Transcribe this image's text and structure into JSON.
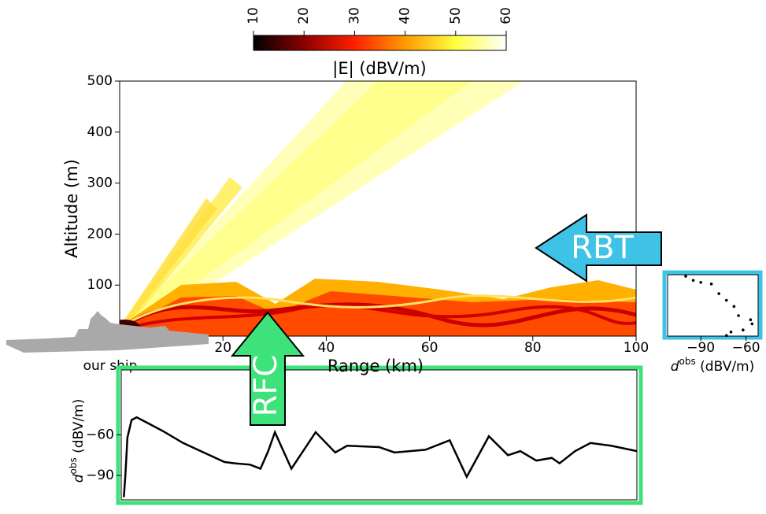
{
  "chart_data": [
    {
      "type": "heatmap",
      "xlabel": "Range (km)",
      "ylabel": "Altitude (m)",
      "xlim": [
        0,
        100
      ],
      "ylim": [
        0,
        500
      ],
      "xticks": [
        20,
        40,
        60,
        80,
        100
      ],
      "yticks": [
        100,
        200,
        300,
        400,
        500
      ],
      "colorbar": {
        "label": "|E| (dBV/m)",
        "lim": [
          10,
          60
        ],
        "ticks": [
          10,
          20,
          30,
          40,
          50,
          60
        ],
        "colors": [
          "#000000",
          "#8b0000",
          "#ff2000",
          "#ff9a00",
          "#ffff40",
          "#ffffff"
        ]
      },
      "annotation": "our ship"
    },
    {
      "type": "line",
      "annotation": "RFC",
      "color": "#000000",
      "x": [
        0.5,
        0.8,
        1.2,
        2,
        3,
        5,
        8,
        12,
        16,
        20,
        22,
        25,
        27,
        28.5,
        29.8,
        33,
        37.7,
        41.5,
        43.8,
        50,
        53,
        59,
        63.7,
        67,
        71.3,
        75,
        77.4,
        80.5,
        83.5,
        85,
        88,
        91,
        95,
        100
      ],
      "values": [
        -106,
        -90,
        -62,
        -49,
        -47,
        -51,
        -57,
        -66,
        -73,
        -80,
        -81,
        -82,
        -85,
        -72,
        -58,
        -85,
        -58,
        -73,
        -68,
        -69,
        -73,
        -71,
        -64,
        -91,
        -61,
        -75,
        -72,
        -79,
        -77,
        -81,
        -72,
        -66,
        -68,
        -72
      ],
      "xlim": [
        0,
        100
      ],
      "ylim": [
        -108,
        -12
      ],
      "yticks": [
        {
          "value": -60,
          "label": "−60"
        },
        {
          "value": -90,
          "label": "−90"
        }
      ],
      "ylabel": {
        "symbol": "d",
        "superscript": "obs",
        "unit": "(dBV/m)"
      }
    },
    {
      "type": "profile",
      "annotation": "RBT",
      "color": "#000000",
      "x": [
        -100,
        -95,
        -90,
        -83,
        -78,
        -73,
        -68,
        -65,
        -57,
        -56,
        -62,
        -70,
        -73
      ],
      "y": [
        117,
        109,
        105,
        102,
        83,
        70,
        58,
        40,
        32,
        24,
        12,
        8,
        1
      ],
      "xlim": [
        -112,
        -52
      ],
      "ylim": [
        0,
        120
      ],
      "xticks": [
        {
          "value": -90,
          "label": "−90"
        },
        {
          "value": -60,
          "label": "−60"
        }
      ],
      "xlabel": {
        "symbol": "d",
        "superscript": "obs",
        "unit": "(dBV/m)"
      }
    }
  ]
}
